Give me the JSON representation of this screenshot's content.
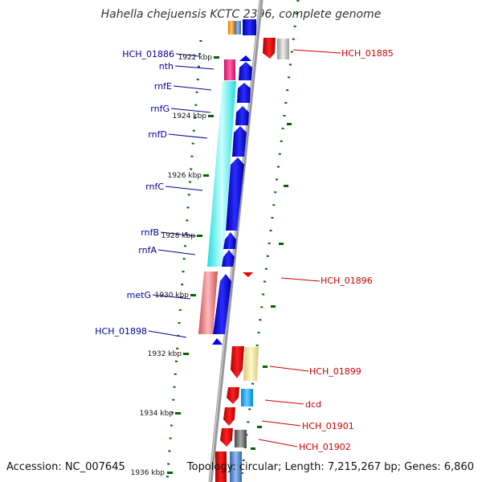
{
  "title": "Hahella chejuensis KCTC 2396, complete genome",
  "accession": "Accession: NC_007645",
  "summary": "Topology: circular; Length: 7,215,267 bp; Genes: 6,860",
  "colors": {
    "forward_label": "#000099",
    "reverse_label": "#cc0000",
    "tick": "#006600",
    "backbone": "#888888",
    "forward_cds": "#0000ee",
    "reverse_cds": "#ee0000"
  },
  "scale": {
    "unit": "kbp",
    "labels": [
      "1922 kbp",
      "1924 kbp",
      "1926 kbp",
      "1928 kbp",
      "1930 kbp",
      "1932 kbp",
      "1934 kbp",
      "1936 kbp"
    ]
  },
  "forward_genes": [
    {
      "id": "HCH_01886",
      "cog_color": "#ff9900"
    },
    {
      "id": "nth",
      "cog_color": "#ff3399"
    },
    {
      "id": "rnfE",
      "cog_color": "#00ffff"
    },
    {
      "id": "rnfG",
      "cog_color": "#00ffff"
    },
    {
      "id": "rnfD",
      "cog_color": "#00ffff"
    },
    {
      "id": "rnfC",
      "cog_color": "#00ffff"
    },
    {
      "id": "rnfB",
      "cog_color": "#00ffff"
    },
    {
      "id": "rnfA",
      "cog_color": "#00ffff"
    },
    {
      "id": "metG",
      "cog_color": "#ee8888"
    },
    {
      "id": "HCH_01898",
      "cog_color": "#0000ee"
    }
  ],
  "reverse_genes": [
    {
      "id": "HCH_01885",
      "cog_color": "#bbbbbb"
    },
    {
      "id": "HCH_01896",
      "cog_color": "#ee0000"
    },
    {
      "id": "HCH_01899",
      "cog_color": "#f0e090"
    },
    {
      "id": "dcd",
      "cog_color": "#00aaff"
    },
    {
      "id": "HCH_01901",
      "cog_color": "#ee0000"
    },
    {
      "id": "HCH_01902",
      "cog_color": "#777777"
    }
  ]
}
